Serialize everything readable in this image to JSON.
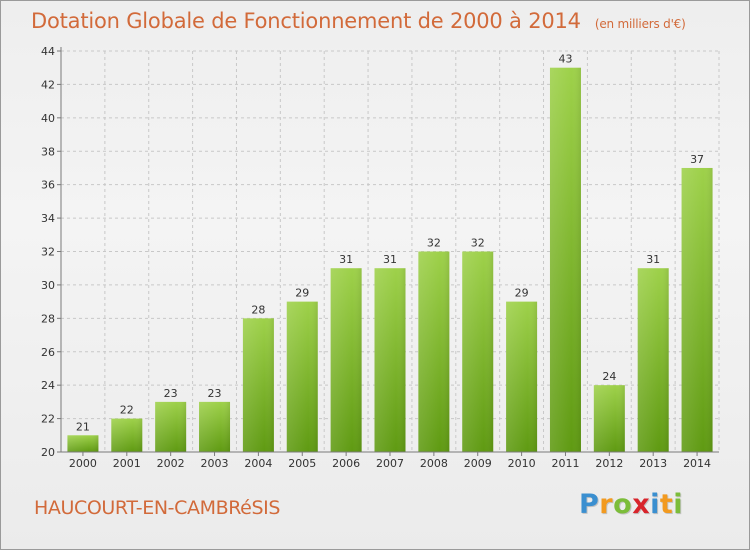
{
  "header": {
    "title": "Dotation Globale de Fonctionnement de 2000 à 2014",
    "unit": "(en milliers d'€)"
  },
  "footer": {
    "town": "HAUCOURT-EN-CAMBRéSIS",
    "logo": {
      "letters": [
        "P",
        "r",
        "o",
        "x",
        "i",
        "t",
        "i"
      ],
      "colors": [
        "#3a8fd0",
        "#f29a1f",
        "#7cbd3a",
        "#d8242b",
        "#3a8fd0",
        "#f29a1f",
        "#7cbd3a"
      ]
    }
  },
  "colors": {
    "title": "#d26a3a",
    "bar_top": "#9ed14a",
    "bar_bottom": "#5f9a12",
    "grid": "#c8c8c8",
    "axis": "#7a7a7a"
  },
  "chart_data": {
    "type": "bar",
    "title": "Dotation Globale de Fonctionnement de 2000 à 2014",
    "subtitle": "(en milliers d'€)",
    "xlabel": "",
    "ylabel": "",
    "categories": [
      "2000",
      "2001",
      "2002",
      "2003",
      "2004",
      "2005",
      "2006",
      "2007",
      "2008",
      "2009",
      "2010",
      "2011",
      "2012",
      "2013",
      "2014"
    ],
    "values": [
      21,
      22,
      23,
      23,
      28,
      29,
      31,
      31,
      32,
      32,
      29,
      43,
      24,
      31,
      37
    ],
    "ylim": [
      20,
      44
    ],
    "yticks": [
      20,
      22,
      24,
      26,
      28,
      30,
      32,
      34,
      36,
      38,
      40,
      42,
      44
    ],
    "grid": true,
    "data_labels": true
  }
}
